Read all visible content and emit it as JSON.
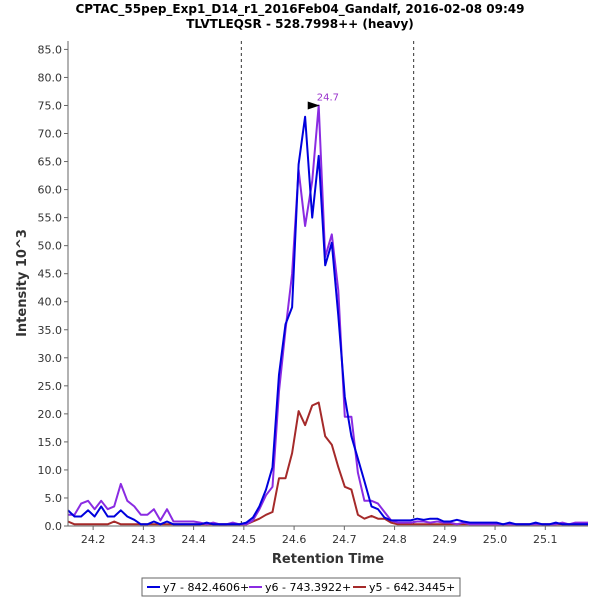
{
  "chart_data": {
    "type": "line",
    "title": "CPTAC_55pep_Exp1_D14_r1_2016Feb04_Gandalf, 2016-02-08 09:49",
    "subtitle": "TLVTLEQSR - 528.7998++ (heavy)",
    "xlabel": "Retention Time",
    "ylabel": "Intensity 10^3",
    "xlim": [
      24.15,
      25.185
    ],
    "ylim": [
      0,
      86.5
    ],
    "x_ticks": [
      24.2,
      24.3,
      24.4,
      24.5,
      24.6,
      24.7,
      24.8,
      24.9,
      25.0,
      25.1
    ],
    "x_tick_labels": [
      "24.2",
      "24.3",
      "24.4",
      "24.5",
      "24.6",
      "24.7",
      "24.8",
      "24.9",
      "25.0",
      "25.1"
    ],
    "y_ticks": [
      0,
      5,
      10,
      15,
      20,
      25,
      30,
      35,
      40,
      45,
      50,
      55,
      60,
      65,
      70,
      75,
      80,
      85
    ],
    "y_tick_labels": [
      "0.0",
      "5.0",
      "10.0",
      "15.0",
      "20.0",
      "25.0",
      "30.0",
      "35.0",
      "40.0",
      "45.0",
      "50.0",
      "55.0",
      "60.0",
      "65.0",
      "70.0",
      "75.0",
      "80.0",
      "85.0"
    ],
    "boundaries": [
      24.495,
      24.838
    ],
    "annotation": {
      "label": "24.7",
      "x": 24.657,
      "y": 75.0,
      "color": "#9933cc"
    },
    "legend_position": "bottom-center",
    "series": [
      {
        "name": "y7 - 842.4606+",
        "color": "#0000dd",
        "x": [
          24.15,
          24.163,
          24.176,
          24.19,
          24.203,
          24.216,
          24.229,
          24.242,
          24.255,
          24.268,
          24.282,
          24.295,
          24.308,
          24.321,
          24.334,
          24.347,
          24.36,
          24.373,
          24.386,
          24.4,
          24.413,
          24.426,
          24.439,
          24.452,
          24.465,
          24.478,
          24.491,
          24.505,
          24.518,
          24.531,
          24.544,
          24.557,
          24.57,
          24.583,
          24.596,
          24.609,
          24.622,
          24.636,
          24.649,
          24.662,
          24.675,
          24.688,
          24.701,
          24.714,
          24.727,
          24.74,
          24.754,
          24.767,
          24.78,
          24.793,
          24.806,
          24.819,
          24.832,
          24.845,
          24.858,
          24.871,
          24.885,
          24.898,
          24.911,
          24.924,
          24.937,
          24.95,
          24.963,
          24.976,
          24.99,
          25.003,
          25.016,
          25.029,
          25.042,
          25.055,
          25.068,
          25.081,
          25.094,
          25.108,
          25.121,
          25.134,
          25.147,
          25.16,
          25.173,
          25.185
        ],
        "values": [
          2.8,
          1.7,
          1.7,
          2.8,
          1.7,
          3.5,
          1.7,
          1.7,
          2.8,
          1.7,
          1.1,
          0.3,
          0.3,
          0.8,
          0.3,
          0.8,
          0.3,
          0.3,
          0.3,
          0.3,
          0.3,
          0.6,
          0.3,
          0.3,
          0.3,
          0.3,
          0.3,
          0.6,
          1.5,
          3.5,
          6.5,
          10.5,
          27.0,
          36.0,
          39.0,
          64.5,
          73.0,
          55.0,
          66.0,
          46.5,
          50.5,
          37.5,
          23.0,
          16.0,
          12.0,
          8.0,
          3.5,
          3.0,
          1.5,
          1.0,
          1.0,
          1.0,
          1.0,
          1.3,
          1.1,
          1.3,
          1.3,
          0.8,
          0.8,
          1.1,
          0.8,
          0.6,
          0.6,
          0.6,
          0.6,
          0.6,
          0.3,
          0.6,
          0.3,
          0.3,
          0.3,
          0.6,
          0.3,
          0.3,
          0.6,
          0.3,
          0.3,
          0.3,
          0.3,
          0.3
        ]
      },
      {
        "name": "y6 - 743.3922+",
        "color": "#8a2be2",
        "x": [
          24.15,
          24.163,
          24.176,
          24.19,
          24.203,
          24.216,
          24.229,
          24.242,
          24.255,
          24.268,
          24.282,
          24.295,
          24.308,
          24.321,
          24.334,
          24.347,
          24.36,
          24.373,
          24.386,
          24.4,
          24.413,
          24.426,
          24.439,
          24.452,
          24.465,
          24.478,
          24.491,
          24.505,
          24.518,
          24.531,
          24.544,
          24.557,
          24.57,
          24.583,
          24.596,
          24.609,
          24.622,
          24.636,
          24.649,
          24.662,
          24.675,
          24.688,
          24.701,
          24.714,
          24.727,
          24.74,
          24.754,
          24.767,
          24.78,
          24.793,
          24.806,
          24.819,
          24.832,
          24.845,
          24.858,
          24.871,
          24.885,
          24.898,
          24.911,
          24.924,
          24.937,
          24.95,
          24.963,
          24.976,
          24.99,
          25.003,
          25.016,
          25.029,
          25.042,
          25.055,
          25.068,
          25.081,
          25.094,
          25.108,
          25.121,
          25.134,
          25.147,
          25.16,
          25.173,
          25.185
        ],
        "values": [
          2.0,
          2.0,
          4.0,
          4.5,
          3.0,
          4.5,
          3.0,
          3.5,
          7.5,
          4.5,
          3.5,
          2.0,
          2.0,
          3.0,
          1.0,
          3.0,
          0.8,
          0.8,
          0.8,
          0.8,
          0.6,
          0.3,
          0.6,
          0.3,
          0.3,
          0.6,
          0.3,
          0.3,
          1.0,
          3.0,
          5.5,
          7.0,
          24.0,
          35.0,
          45.0,
          63.5,
          53.5,
          61.5,
          75.0,
          48.0,
          52.0,
          42.0,
          19.5,
          19.5,
          9.5,
          4.5,
          4.5,
          4.0,
          2.5,
          1.0,
          0.6,
          0.6,
          0.6,
          0.8,
          0.8,
          0.6,
          0.8,
          0.6,
          0.6,
          0.3,
          0.6,
          0.3,
          0.3,
          0.3,
          0.3,
          0.3,
          0.3,
          0.3,
          0.3,
          0.3,
          0.3,
          0.3,
          0.3,
          0.3,
          0.3,
          0.6,
          0.3,
          0.6,
          0.6,
          0.6
        ]
      },
      {
        "name": "y5 - 642.3445+",
        "color": "#a52a2a",
        "x": [
          24.15,
          24.163,
          24.176,
          24.19,
          24.203,
          24.216,
          24.229,
          24.242,
          24.255,
          24.268,
          24.282,
          24.295,
          24.308,
          24.321,
          24.334,
          24.347,
          24.36,
          24.373,
          24.386,
          24.4,
          24.413,
          24.426,
          24.439,
          24.452,
          24.465,
          24.478,
          24.491,
          24.505,
          24.518,
          24.531,
          24.544,
          24.557,
          24.57,
          24.583,
          24.596,
          24.609,
          24.622,
          24.636,
          24.649,
          24.662,
          24.675,
          24.688,
          24.701,
          24.714,
          24.727,
          24.74,
          24.754,
          24.767,
          24.78,
          24.793,
          24.806,
          24.819,
          24.832,
          24.845,
          24.858,
          24.871,
          24.885,
          24.898,
          24.911,
          24.924,
          24.937,
          24.95,
          24.963,
          24.976,
          24.99,
          25.003,
          25.016,
          25.029,
          25.042,
          25.055,
          25.068,
          25.081,
          25.094,
          25.108,
          25.121,
          25.134,
          25.147,
          25.16,
          25.173,
          25.185
        ],
        "values": [
          0.8,
          0.3,
          0.3,
          0.3,
          0.3,
          0.3,
          0.3,
          0.8,
          0.3,
          0.3,
          0.3,
          0.3,
          0.3,
          0.3,
          0.3,
          0.3,
          0.3,
          0.3,
          0.3,
          0.3,
          0.3,
          0.3,
          0.3,
          0.3,
          0.3,
          0.3,
          0.3,
          0.3,
          0.8,
          1.3,
          2.0,
          2.5,
          8.5,
          8.5,
          13.0,
          20.5,
          18.0,
          21.5,
          22.0,
          16.0,
          14.5,
          10.5,
          7.0,
          6.5,
          2.0,
          1.3,
          1.8,
          1.3,
          1.3,
          0.6,
          0.3,
          0.3,
          0.3,
          0.3,
          0.3,
          0.3,
          0.3,
          0.3,
          0.3,
          0.3,
          0.3,
          0.3,
          0.3,
          0.3,
          0.3,
          0.3,
          0.3,
          0.3,
          0.3,
          0.3,
          0.3,
          0.3,
          0.3,
          0.3,
          0.3,
          0.3,
          0.3,
          0.3,
          0.3,
          0.3
        ]
      }
    ]
  }
}
